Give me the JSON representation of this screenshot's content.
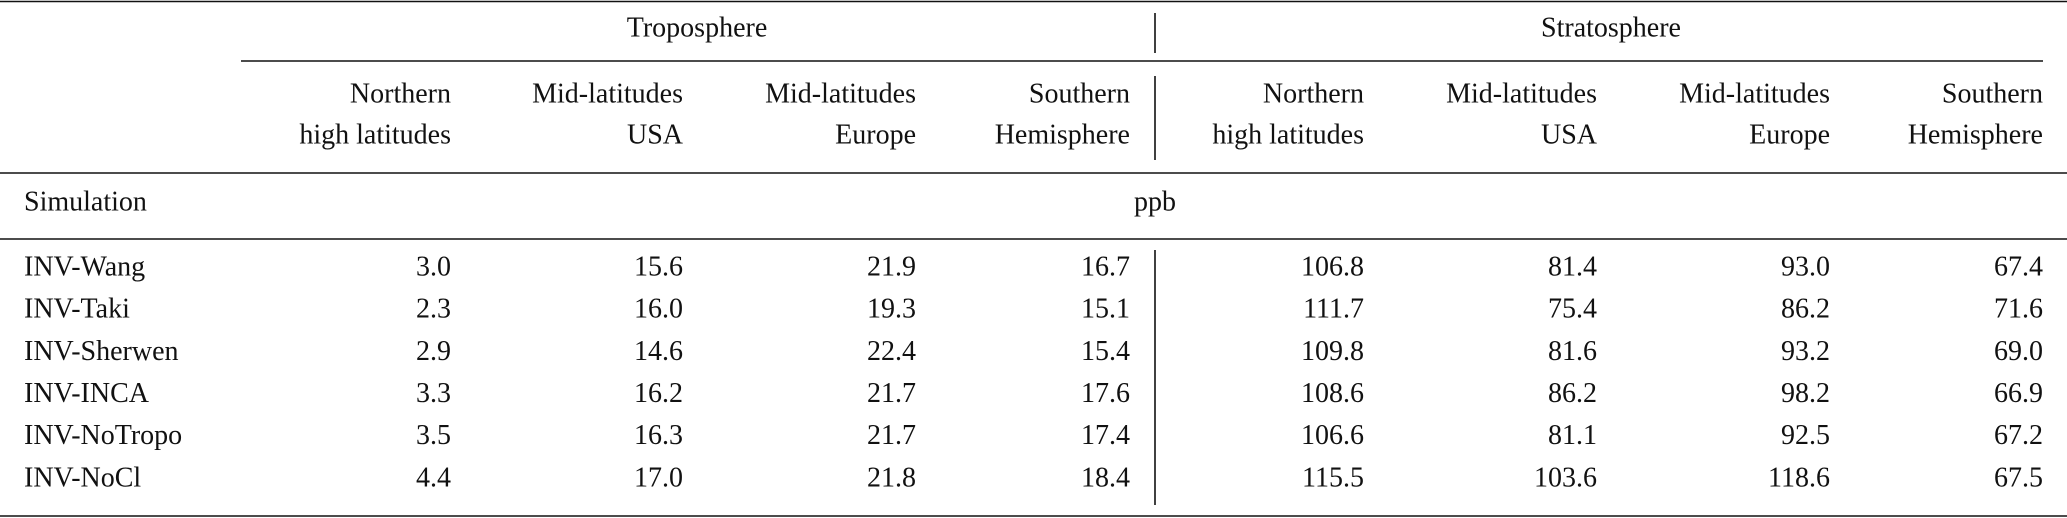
{
  "table": {
    "group_headers": [
      "Troposphere",
      "Stratosphere"
    ],
    "column_headers": [
      [
        "Northern",
        "high latitudes"
      ],
      [
        "Mid-latitudes",
        "USA"
      ],
      [
        "Mid-latitudes",
        "Europe"
      ],
      [
        "Southern",
        "Hemisphere"
      ],
      [
        "Northern",
        "high latitudes"
      ],
      [
        "Mid-latitudes",
        "USA"
      ],
      [
        "Mid-latitudes",
        "Europe"
      ],
      [
        "Southern",
        "Hemisphere"
      ]
    ],
    "row_header_label": "Simulation",
    "unit": "ppb",
    "rows": [
      [
        "INV-Wang",
        "3.0",
        "15.6",
        "21.9",
        "16.7",
        "106.8",
        "81.4",
        "93.0",
        "67.4"
      ],
      [
        "INV-Taki",
        "2.3",
        "16.0",
        "19.3",
        "15.1",
        "111.7",
        "75.4",
        "86.2",
        "71.6"
      ],
      [
        "INV-Sherwen",
        "2.9",
        "14.6",
        "22.4",
        "15.4",
        "109.8",
        "81.6",
        "93.2",
        "69.0"
      ],
      [
        "INV-INCA",
        "3.3",
        "16.2",
        "21.7",
        "17.6",
        "108.6",
        "86.2",
        "98.2",
        "66.9"
      ],
      [
        "INV-NoTropo",
        "3.5",
        "16.3",
        "21.7",
        "17.4",
        "106.6",
        "81.1",
        "92.5",
        "67.2"
      ],
      [
        "INV-NoCl",
        "4.4",
        "17.0",
        "21.8",
        "18.4",
        "115.5",
        "103.6",
        "118.6",
        "67.5"
      ]
    ]
  }
}
